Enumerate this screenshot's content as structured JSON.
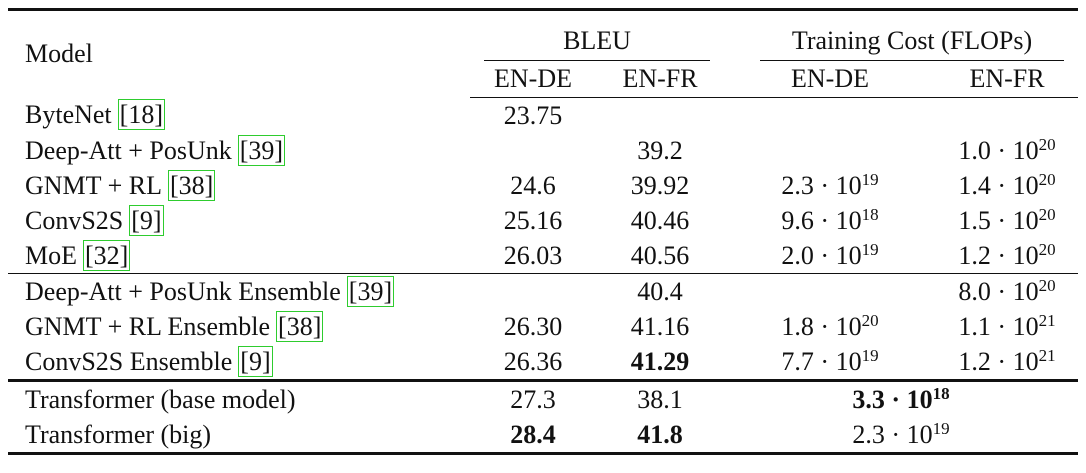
{
  "table": {
    "header": {
      "model": "Model",
      "bleu": "BLEU",
      "cost": "Training Cost (FLOPs)",
      "sub": [
        "EN-DE",
        "EN-FR",
        "EN-DE",
        "EN-FR"
      ]
    },
    "groups": [
      [
        {
          "model": "ByteNet",
          "cite": "[18]",
          "bleu_de": "23.75",
          "bleu_fr": null,
          "cost_de": null,
          "cost_fr": null
        },
        {
          "model": "Deep-Att + PosUnk",
          "cite": "[39]",
          "bleu_de": null,
          "bleu_fr": "39.2",
          "cost_de": null,
          "cost_fr": {
            "base": "1.0 · 10",
            "exp": "20"
          }
        },
        {
          "model": "GNMT + RL",
          "cite": "[38]",
          "bleu_de": "24.6",
          "bleu_fr": "39.92",
          "cost_de": {
            "base": "2.3 · 10",
            "exp": "19"
          },
          "cost_fr": {
            "base": "1.4 · 10",
            "exp": "20"
          }
        },
        {
          "model": "ConvS2S",
          "cite": "[9]",
          "bleu_de": "25.16",
          "bleu_fr": "40.46",
          "cost_de": {
            "base": "9.6 · 10",
            "exp": "18"
          },
          "cost_fr": {
            "base": "1.5 · 10",
            "exp": "20"
          }
        },
        {
          "model": "MoE",
          "cite": "[32]",
          "bleu_de": "26.03",
          "bleu_fr": "40.56",
          "cost_de": {
            "base": "2.0 · 10",
            "exp": "19"
          },
          "cost_fr": {
            "base": "1.2 · 10",
            "exp": "20"
          }
        }
      ],
      [
        {
          "model": "Deep-Att + PosUnk Ensemble",
          "cite": "[39]",
          "bleu_de": null,
          "bleu_fr": "40.4",
          "cost_de": null,
          "cost_fr": {
            "base": "8.0 · 10",
            "exp": "20"
          }
        },
        {
          "model": "GNMT + RL Ensemble",
          "cite": "[38]",
          "bleu_de": "26.30",
          "bleu_fr": "41.16",
          "cost_de": {
            "base": "1.8 · 10",
            "exp": "20"
          },
          "cost_fr": {
            "base": "1.1 · 10",
            "exp": "21"
          }
        },
        {
          "model": "ConvS2S Ensemble",
          "cite": "[9]",
          "bleu_de": "26.36",
          "bleu_fr": "41.29",
          "cost_de": {
            "base": "7.7 · 10",
            "exp": "19"
          },
          "cost_fr": {
            "base": "1.2 · 10",
            "exp": "21"
          },
          "bold": [
            "bleu_fr"
          ]
        }
      ],
      [
        {
          "model": "Transformer (base model)",
          "bleu_de": "27.3",
          "bleu_fr": "38.1",
          "cost_shared": {
            "base": "3.3 · 10",
            "exp": "18"
          },
          "bold": [
            "cost_shared"
          ]
        },
        {
          "model": "Transformer (big)",
          "bleu_de": "28.4",
          "bleu_fr": "41.8",
          "cost_shared": {
            "base": "2.3 · 10",
            "exp": "19"
          },
          "bold": [
            "bleu_de",
            "bleu_fr"
          ]
        }
      ]
    ]
  }
}
